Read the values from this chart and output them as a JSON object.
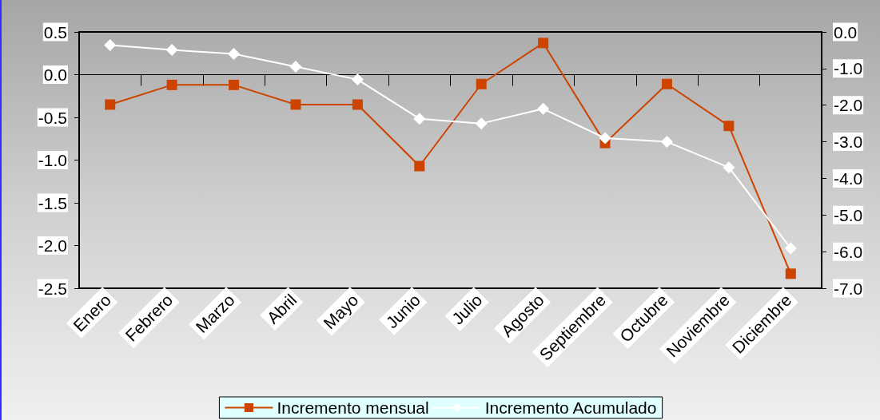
{
  "chart_data": {
    "type": "line",
    "categories": [
      "Enero",
      "Febrero",
      "Marzo",
      "Abril",
      "Mayo",
      "Junio",
      "Julio",
      "Agosto",
      "Septiembre",
      "Octubre",
      "Noviembre",
      "Diciembre"
    ],
    "series": [
      {
        "name": "Incremento mensual",
        "color": "#cc4400",
        "marker": "square",
        "values": [
          -0.35,
          -0.12,
          -0.12,
          -0.35,
          -0.35,
          -1.07,
          -0.11,
          0.37,
          -0.8,
          -0.11,
          -0.6,
          -2.33
        ]
      },
      {
        "name": "Incremento Acumulado",
        "color": "#ffffff",
        "marker": "diamond",
        "axis": "y2",
        "values": [
          -0.36,
          -0.49,
          -0.6,
          -0.95,
          -1.3,
          -2.37,
          -2.5,
          -2.1,
          -2.9,
          -3.0,
          -3.7,
          -5.91
        ]
      }
    ],
    "ylim": [
      -2.5,
      0.5
    ],
    "yticks": [
      {
        "value": -2.5,
        "label": "-2.5"
      },
      {
        "value": -2,
        "label": "-2.0"
      },
      {
        "value": -1.5,
        "label": "-1.5"
      },
      {
        "value": -1,
        "label": "-1.0"
      },
      {
        "value": -0.5,
        "label": "-0.5"
      },
      {
        "value": 0,
        "label": "0.0"
      },
      {
        "value": 0.5,
        "label": "0.5"
      }
    ],
    "y2lim": [
      -7,
      0
    ],
    "y2ticks": [
      {
        "value": -7,
        "label": "-7.0"
      },
      {
        "value": -6,
        "label": "-6.0"
      },
      {
        "value": -5,
        "label": "-5.0"
      },
      {
        "value": -4,
        "label": "-4.0"
      },
      {
        "value": -3,
        "label": "-3.0"
      },
      {
        "value": -2,
        "label": "-2.0"
      },
      {
        "value": -1,
        "label": "-1.0"
      },
      {
        "value": 0,
        "label": "0.0"
      }
    ],
    "legend": "bottom"
  }
}
